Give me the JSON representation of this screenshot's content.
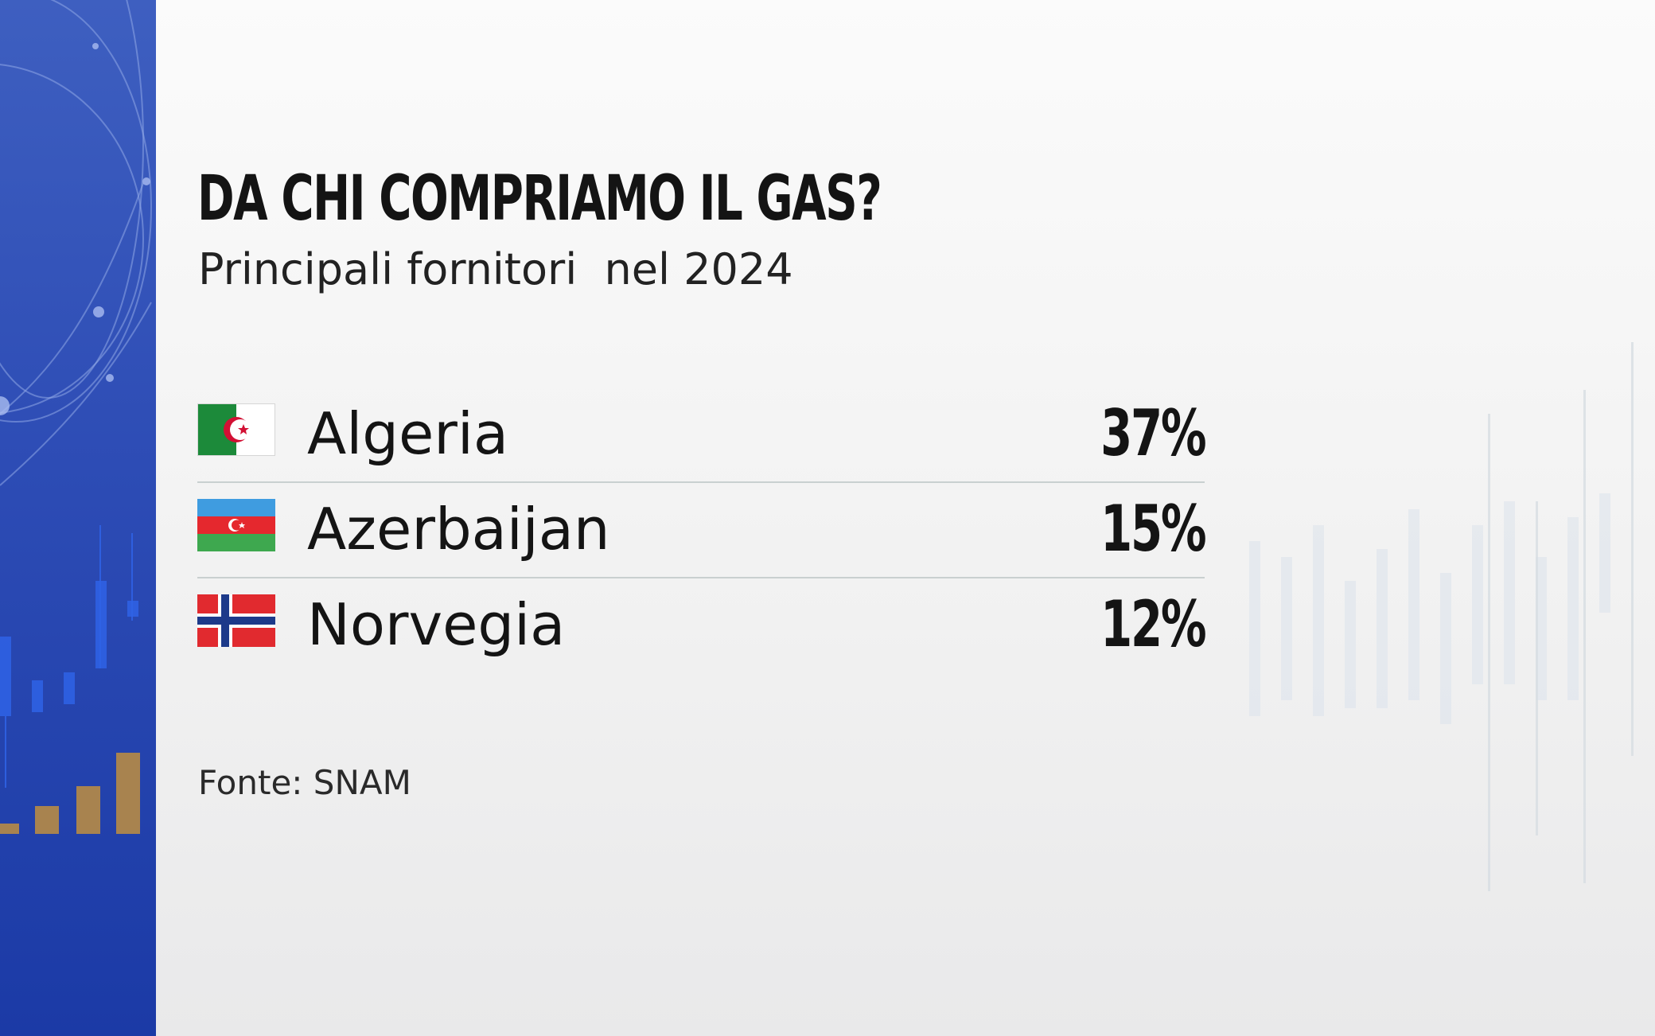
{
  "title": "DA CHI COMPRIAMO IL GAS?",
  "subtitle": "Principali fornitori  nel 2024",
  "suppliers": [
    {
      "country": "Algeria",
      "share": "37%",
      "flag": "algeria-flag-icon"
    },
    {
      "country": "Azerbaijan",
      "share": "15%",
      "flag": "azerbaijan-flag-icon"
    },
    {
      "country": "Norvegia",
      "share": "12%",
      "flag": "norway-flag-icon"
    }
  ],
  "source": "Fonte: SNAM",
  "colors": {
    "panel_blue": "#2d4cb5",
    "text": "#141414",
    "divider": "#c9d0d0",
    "bar_gold": "#a8834f"
  }
}
